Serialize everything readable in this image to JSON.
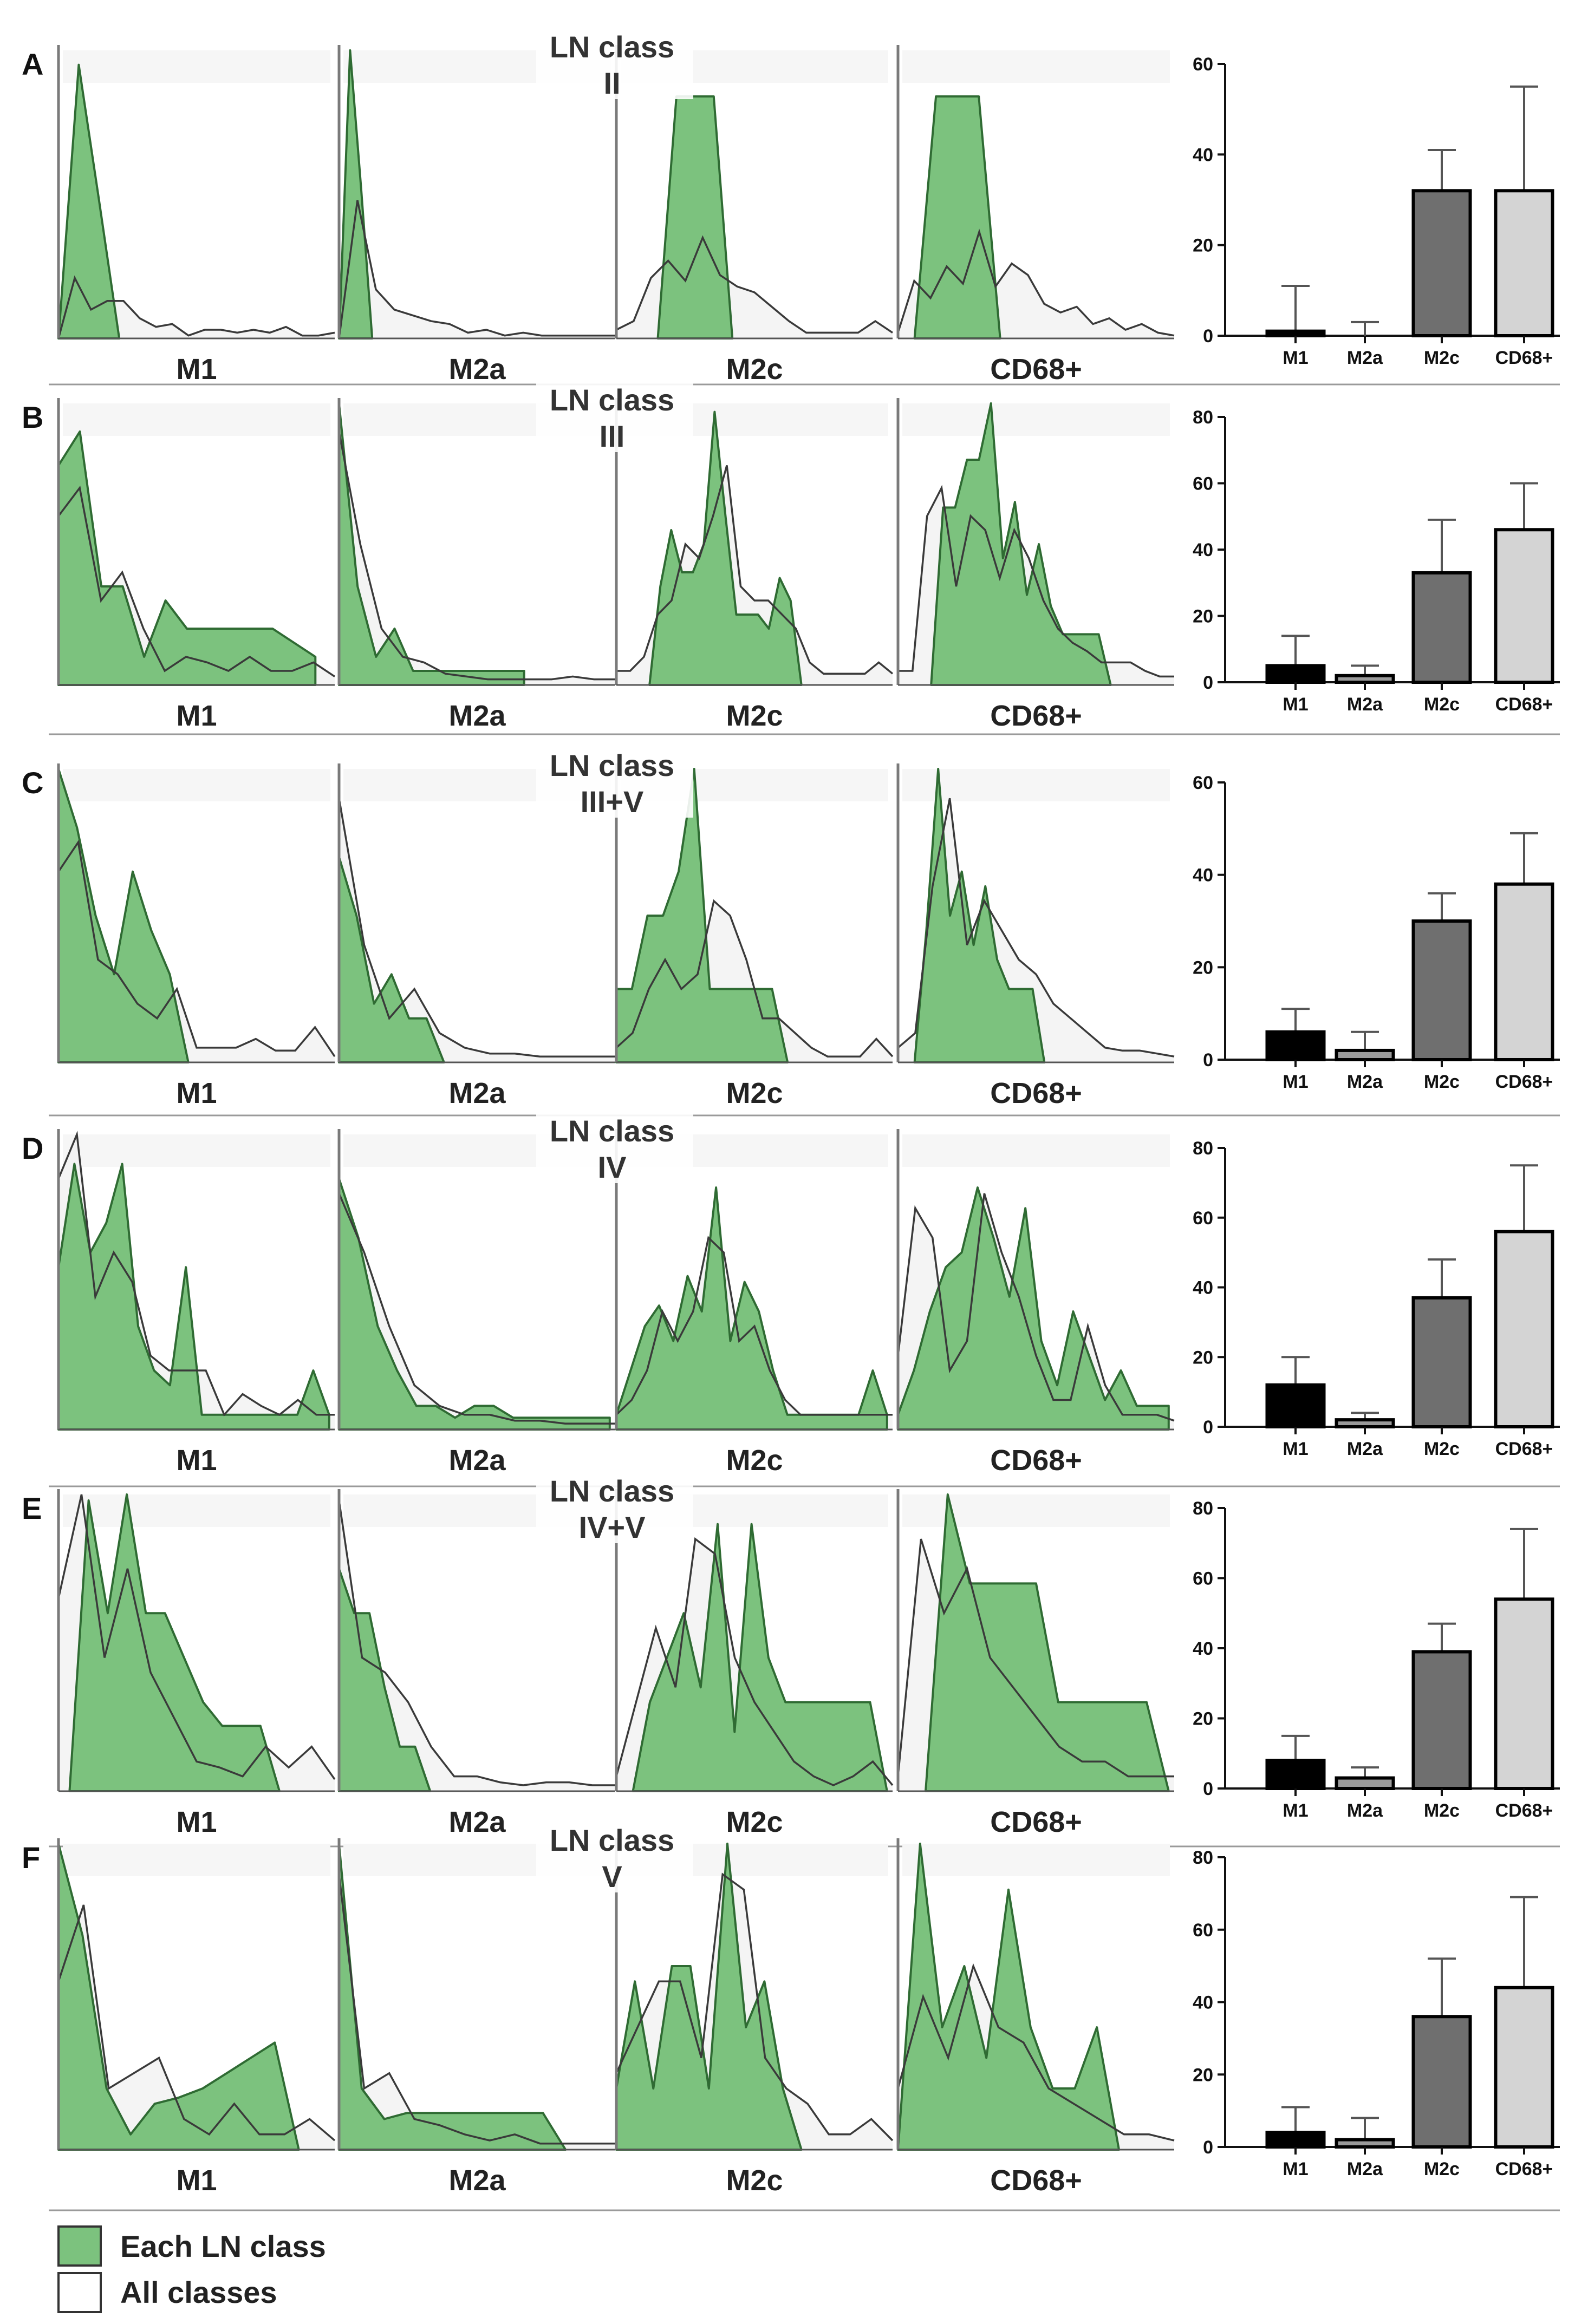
{
  "colors": {
    "green_fill": "#7cc27e",
    "green_stroke": "#2f6b33",
    "all_fill": "#f4f4f4",
    "all_stroke": "#3a3a3a",
    "divider": "#7a7a7a",
    "bar_M1": "#000000",
    "bar_M2a": "#9a9a9a",
    "bar_M2c": "#6f6f6f",
    "bar_CD68": "#d4d4d4"
  },
  "legend": {
    "each": "Each LN class",
    "all": "All classes"
  },
  "chart_data": [
    {
      "panel": "A",
      "title_line1": "LN class",
      "title_line2": "II",
      "type": "area",
      "hist_labels": [
        "M1",
        "M2a",
        "M2c",
        "CD68+"
      ],
      "histograms": {
        "M1": {
          "each": [
            0,
            95,
            48,
            0
          ],
          "all": [
            0,
            21,
            10,
            13,
            13,
            7,
            4,
            5,
            1,
            3,
            3,
            2,
            3,
            2,
            4,
            1,
            1,
            2
          ],
          "each_end": 0.22
        },
        "M2a": {
          "each": [
            0,
            100,
            52,
            0
          ],
          "all": [
            0,
            48,
            17,
            10,
            8,
            6,
            5,
            2,
            3,
            1,
            2,
            1,
            1,
            1,
            1,
            1
          ],
          "each_end": 0.12
        },
        "M2c": {
          "each": [
            0,
            84,
            84,
            84,
            0
          ],
          "all": [
            3,
            6,
            21,
            27,
            20,
            35,
            22,
            18,
            16,
            11,
            6,
            2,
            2,
            2,
            2,
            6,
            2
          ],
          "each_start": 0.15,
          "each_end": 0.42
        },
        "CD68+": {
          "each": [
            0,
            84,
            84,
            84,
            0
          ],
          "all": [
            2,
            20,
            14,
            25,
            19,
            37,
            18,
            26,
            22,
            12,
            9,
            11,
            5,
            7,
            3,
            5,
            2,
            1
          ],
          "each_start": 0.06,
          "each_end": 0.37
        }
      },
      "bars": {
        "categories": [
          "M1",
          "M2a",
          "M2c",
          "CD68+"
        ],
        "values": [
          1,
          0,
          32,
          32
        ],
        "errors": [
          10,
          3,
          9,
          23
        ],
        "ymax": 60,
        "ticks": [
          0,
          20,
          40,
          60
        ]
      }
    },
    {
      "panel": "B",
      "title_line1": "LN class",
      "title_line2": "III",
      "type": "area",
      "hist_labels": [
        "M1",
        "M2a",
        "M2c",
        "CD68+"
      ],
      "histograms": {
        "M1": {
          "each": [
            78,
            90,
            35,
            35,
            10,
            30,
            20,
            20,
            20,
            20,
            20,
            15,
            10
          ],
          "all": [
            60,
            70,
            30,
            40,
            20,
            5,
            10,
            8,
            5,
            10,
            5,
            5,
            8,
            3
          ],
          "each_end": 0.93
        },
        "M2a": {
          "each": [
            100,
            35,
            10,
            20,
            5,
            5,
            5,
            5,
            5,
            5,
            5
          ],
          "all": [
            90,
            50,
            20,
            10,
            8,
            4,
            3,
            2,
            2,
            2,
            2,
            3,
            2,
            2
          ],
          "each_end": 0.67
        },
        "M2c": {
          "each": [
            0,
            35,
            55,
            40,
            40,
            50,
            97,
            60,
            25,
            25,
            25,
            20,
            38,
            30,
            0
          ],
          "all": [
            5,
            5,
            10,
            25,
            30,
            50,
            45,
            60,
            78,
            35,
            30,
            30,
            25,
            20,
            8,
            4,
            4,
            4,
            4,
            8,
            4
          ],
          "each_start": 0.12,
          "each_end": 0.67
        },
        "CD68+": {
          "each": [
            0,
            63,
            63,
            80,
            80,
            100,
            45,
            65,
            32,
            50,
            28,
            18,
            18,
            18,
            18,
            0
          ],
          "all": [
            5,
            5,
            60,
            70,
            35,
            60,
            55,
            38,
            55,
            45,
            30,
            20,
            15,
            12,
            8,
            8,
            8,
            5,
            3,
            3
          ],
          "each_start": 0.12,
          "each_end": 0.77
        }
      },
      "bars": {
        "categories": [
          "M1",
          "M2a",
          "M2c",
          "CD68+"
        ],
        "values": [
          5,
          2,
          33,
          46
        ],
        "errors": [
          9,
          3,
          16,
          14
        ],
        "ymax": 80,
        "ticks": [
          0,
          20,
          40,
          60,
          80
        ]
      }
    },
    {
      "panel": "C",
      "title_line1": "LN class",
      "title_line2": "III+V",
      "type": "area",
      "hist_labels": [
        "M1",
        "M2a",
        "M2c",
        "CD68+"
      ],
      "histograms": {
        "M1": {
          "each": [
            100,
            80,
            50,
            30,
            65,
            45,
            30,
            0
          ],
          "all": [
            65,
            75,
            35,
            30,
            20,
            15,
            25,
            5,
            5,
            5,
            8,
            4,
            4,
            12,
            2
          ],
          "each_end": 0.47
        },
        "M2a": {
          "each": [
            70,
            50,
            20,
            30,
            15,
            15,
            0
          ],
          "all": [
            90,
            40,
            15,
            25,
            10,
            5,
            3,
            3,
            2,
            2,
            2,
            2
          ],
          "each_end": 0.38
        },
        "M2c": {
          "each": [
            25,
            25,
            50,
            50,
            65,
            100,
            25,
            25,
            25,
            25,
            25,
            0
          ],
          "all": [
            5,
            10,
            25,
            35,
            25,
            30,
            55,
            50,
            35,
            15,
            15,
            10,
            5,
            2,
            2,
            2,
            8,
            2
          ],
          "each_end": 0.62
        },
        "CD68+": {
          "each": [
            0,
            45,
            100,
            50,
            65,
            40,
            60,
            35,
            25,
            25,
            25,
            0
          ],
          "all": [
            5,
            10,
            60,
            90,
            40,
            55,
            45,
            35,
            30,
            20,
            15,
            10,
            5,
            4,
            4,
            3,
            2
          ],
          "each_start": 0.06,
          "each_end": 0.53
        }
      },
      "bars": {
        "categories": [
          "M1",
          "M2a",
          "M2c",
          "CD68+"
        ],
        "values": [
          6,
          2,
          30,
          38
        ],
        "errors": [
          5,
          4,
          6,
          11
        ],
        "ymax": 60,
        "ticks": [
          0,
          20,
          40,
          60
        ]
      }
    },
    {
      "panel": "D",
      "title_line1": "LN class",
      "title_line2": "IV",
      "type": "area",
      "hist_labels": [
        "M1",
        "M2a",
        "M2c",
        "CD68+"
      ],
      "histograms": {
        "M1": {
          "each": [
            55,
            90,
            60,
            70,
            90,
            35,
            20,
            15,
            55,
            5,
            5,
            5,
            5,
            5,
            5,
            5,
            20,
            5
          ],
          "all": [
            85,
            100,
            45,
            60,
            50,
            25,
            20,
            20,
            20,
            5,
            12,
            8,
            5,
            10,
            5,
            5
          ],
          "each_end": 0.98
        },
        "M2a": {
          "each": [
            85,
            65,
            35,
            20,
            8,
            8,
            4,
            8,
            8,
            4,
            4,
            4,
            4,
            4,
            4
          ],
          "all": [
            80,
            60,
            35,
            15,
            8,
            5,
            5,
            3,
            3,
            2,
            2,
            2
          ],
          "each_end": 0.98
        },
        "M2c": {
          "each": [
            5,
            20,
            35,
            42,
            30,
            52,
            40,
            82,
            30,
            50,
            40,
            20,
            5,
            5,
            5,
            5,
            5,
            5,
            20,
            5
          ],
          "all": [
            5,
            10,
            20,
            40,
            30,
            40,
            65,
            60,
            30,
            35,
            20,
            10,
            5,
            5,
            5,
            5,
            5,
            5,
            5
          ],
          "each_end": 0.98
        },
        "CD68+": {
          "each": [
            5,
            20,
            40,
            55,
            60,
            82,
            65,
            45,
            75,
            30,
            15,
            40,
            25,
            10,
            20,
            8,
            8,
            8
          ],
          "all": [
            25,
            75,
            65,
            20,
            30,
            80,
            60,
            45,
            25,
            10,
            10,
            35,
            15,
            5,
            5,
            5,
            3
          ],
          "each_end": 0.98
        }
      },
      "bars": {
        "categories": [
          "M1",
          "M2a",
          "M2c",
          "CD68+"
        ],
        "values": [
          12,
          2,
          37,
          56
        ],
        "errors": [
          8,
          2,
          11,
          19
        ],
        "ymax": 80,
        "ticks": [
          0,
          20,
          40,
          60,
          80
        ]
      }
    },
    {
      "panel": "E",
      "title_line1": "LN class",
      "title_line2": "IV+V",
      "type": "area",
      "hist_labels": [
        "M1",
        "M2a",
        "M2c",
        "CD68+"
      ],
      "histograms": {
        "M1": {
          "each": [
            0,
            98,
            60,
            100,
            60,
            60,
            45,
            30,
            22,
            22,
            22,
            0
          ],
          "all": [
            65,
            100,
            45,
            75,
            40,
            25,
            10,
            8,
            5,
            15,
            8,
            15,
            4
          ],
          "each_start": 0.04,
          "each_end": 0.8
        },
        "M2a": {
          "each": [
            75,
            60,
            60,
            35,
            15,
            15,
            0
          ],
          "all": [
            98,
            45,
            40,
            30,
            15,
            5,
            5,
            3,
            2,
            3,
            3,
            2,
            2
          ],
          "each_end": 0.33
        },
        "M2c": {
          "each": [
            0,
            30,
            45,
            60,
            35,
            90,
            20,
            90,
            45,
            30,
            30,
            30,
            30,
            30,
            30,
            0
          ],
          "all": [
            5,
            30,
            55,
            35,
            85,
            80,
            45,
            30,
            20,
            10,
            5,
            2,
            5,
            10,
            2
          ],
          "each_start": 0.06,
          "each_end": 0.98
        },
        "CD68+": {
          "each": [
            0,
            100,
            70,
            70,
            70,
            70,
            30,
            30,
            30,
            30,
            30,
            0
          ],
          "all": [
            5,
            85,
            60,
            75,
            45,
            35,
            25,
            15,
            10,
            10,
            5,
            5,
            5
          ],
          "each_start": 0.1,
          "each_end": 0.98
        }
      },
      "bars": {
        "categories": [
          "M1",
          "M2a",
          "M2c",
          "CD68+"
        ],
        "values": [
          8,
          3,
          39,
          54
        ],
        "errors": [
          7,
          3,
          8,
          20
        ],
        "ymax": 80,
        "ticks": [
          0,
          20,
          40,
          60,
          80
        ]
      }
    },
    {
      "panel": "F",
      "title_line1": "LN class",
      "title_line2": "V",
      "type": "area",
      "hist_labels": [
        "M1",
        "M2a",
        "M2c",
        "CD68+"
      ],
      "histograms": {
        "M1": {
          "each": [
            100,
            70,
            20,
            5,
            15,
            17,
            20,
            25,
            30,
            35,
            0
          ],
          "all": [
            55,
            80,
            20,
            25,
            30,
            10,
            5,
            15,
            5,
            5,
            10,
            3
          ],
          "each_end": 0.87
        },
        "M2a": {
          "each": [
            100,
            20,
            10,
            12,
            12,
            12,
            12,
            12,
            12,
            12,
            0
          ],
          "all": [
            90,
            20,
            25,
            10,
            8,
            5,
            3,
            5,
            2,
            2,
            2,
            2
          ],
          "each_end": 0.82
        },
        "M2c": {
          "each": [
            20,
            55,
            20,
            60,
            60,
            20,
            100,
            40,
            55,
            20,
            0
          ],
          "all": [
            25,
            40,
            55,
            55,
            30,
            90,
            85,
            30,
            20,
            15,
            5,
            5,
            10,
            3
          ],
          "each_end": 0.67
        },
        "CD68+": {
          "each": [
            0,
            100,
            40,
            60,
            30,
            85,
            40,
            20,
            20,
            40,
            0
          ],
          "all": [
            20,
            50,
            30,
            60,
            40,
            35,
            20,
            15,
            10,
            5,
            5,
            3
          ],
          "each_end": 0.8
        }
      },
      "bars": {
        "categories": [
          "M1",
          "M2a",
          "M2c",
          "CD68+"
        ],
        "values": [
          4,
          2,
          36,
          44
        ],
        "errors": [
          7,
          6,
          16,
          25
        ],
        "ymax": 80,
        "ticks": [
          0,
          20,
          40,
          60,
          80
        ]
      }
    }
  ]
}
